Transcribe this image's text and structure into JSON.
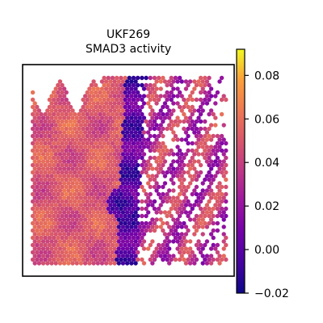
{
  "chart_data": {
    "type": "heatmap",
    "title_line1": "UKF269",
    "title_line2": "SMAD3 activity",
    "colormap": "plasma",
    "colorbar": {
      "min": -0.02,
      "max": 0.092,
      "ticks": [
        0.08,
        0.06,
        0.04,
        0.02,
        0.0,
        -0.02
      ],
      "tick_labels": [
        "0.08",
        "0.06",
        "0.04",
        "0.02",
        "0.00",
        "−0.02"
      ]
    },
    "spatial_regions": [
      {
        "region": "left tissue area",
        "typical_value": 0.05
      },
      {
        "region": "central vertical band",
        "typical_value": 0.0
      },
      {
        "region": "central low spot",
        "typical_value": -0.015
      },
      {
        "region": "right sparse area",
        "typical_value": 0.035
      }
    ]
  }
}
